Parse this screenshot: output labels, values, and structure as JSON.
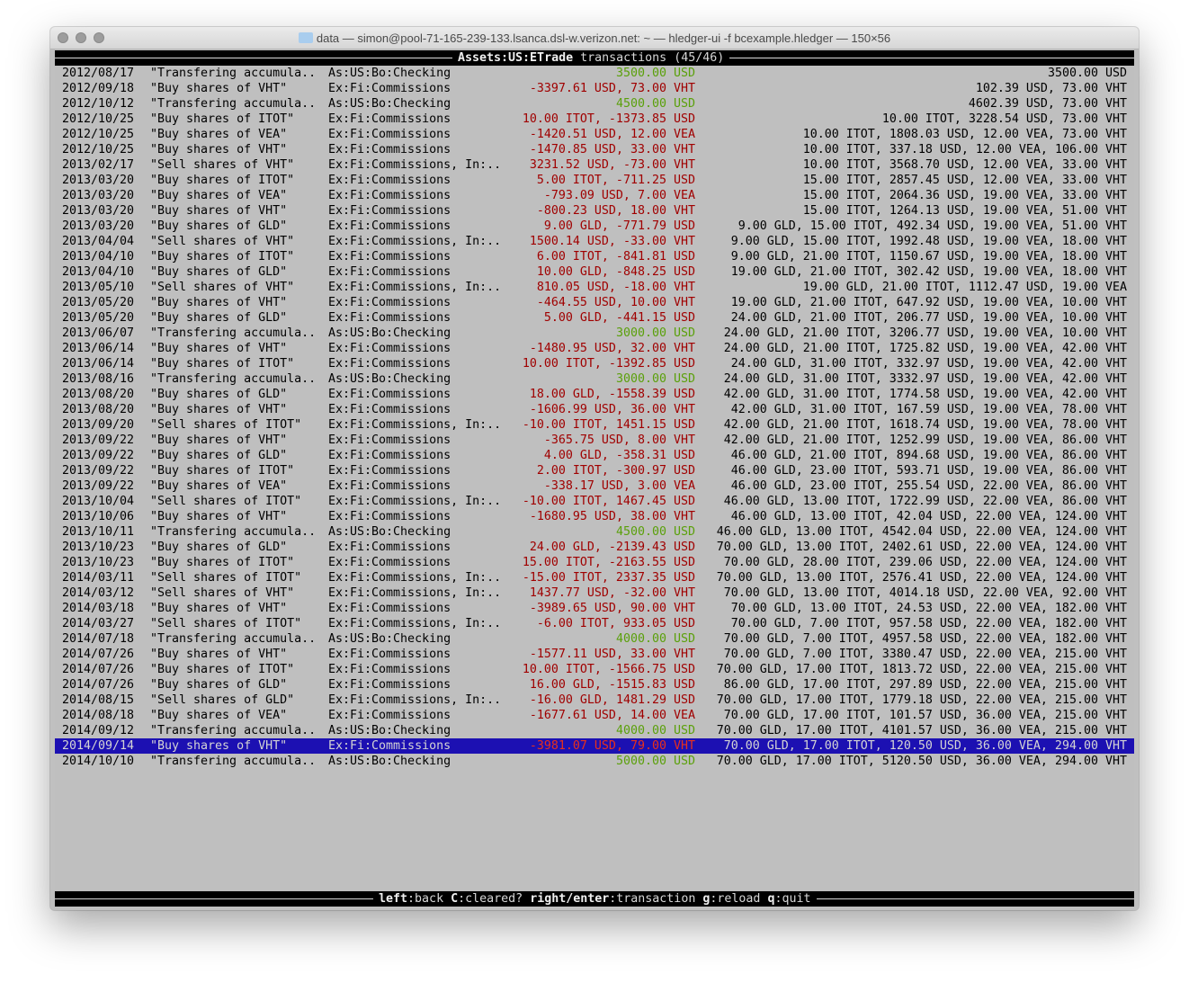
{
  "window": {
    "title": "data — simon@pool-71-165-239-133.lsanca.dsl-w.verizon.net: ~ — hledger-ui -f bcexample.hledger — 150×56"
  },
  "header": {
    "account": "Assets:US:ETrade",
    "label": "transactions",
    "count": "(45/46)"
  },
  "footer": {
    "keys": [
      {
        "key": "left",
        "action": "back"
      },
      {
        "key": "C",
        "action": "cleared?"
      },
      {
        "key": "right/enter",
        "action": "transaction"
      },
      {
        "key": "g",
        "action": "reload"
      },
      {
        "key": "q",
        "action": "quit"
      }
    ]
  },
  "colors": {
    "background": "#bfbfbf",
    "increase": "#5aa00a",
    "decrease": "#a00000",
    "selected": "#1c10b2"
  },
  "selected_index": 44,
  "rows": [
    [
      "2012/08/17",
      "\"Transfering accumula..",
      "As:US:Bo:Checking",
      "3500.00 USD",
      "3500.00 USD",
      "pos"
    ],
    [
      "2012/09/18",
      "\"Buy shares of VHT\"",
      "Ex:Fi:Commissions",
      "-3397.61 USD, 73.00 VHT",
      "102.39 USD, 73.00 VHT",
      "neg"
    ],
    [
      "2012/10/12",
      "\"Transfering accumula..",
      "As:US:Bo:Checking",
      "4500.00 USD",
      "4602.39 USD, 73.00 VHT",
      "pos"
    ],
    [
      "2012/10/25",
      "\"Buy shares of ITOT\"",
      "Ex:Fi:Commissions",
      "10.00 ITOT, -1373.85 USD",
      "10.00 ITOT, 3228.54 USD, 73.00 VHT",
      "neg"
    ],
    [
      "2012/10/25",
      "\"Buy shares of VEA\"",
      "Ex:Fi:Commissions",
      "-1420.51 USD, 12.00 VEA",
      "10.00 ITOT, 1808.03 USD, 12.00 VEA, 73.00 VHT",
      "neg"
    ],
    [
      "2012/10/25",
      "\"Buy shares of VHT\"",
      "Ex:Fi:Commissions",
      "-1470.85 USD, 33.00 VHT",
      "10.00 ITOT, 337.18 USD, 12.00 VEA, 106.00 VHT",
      "neg"
    ],
    [
      "2013/02/17",
      "\"Sell shares of VHT\"",
      "Ex:Fi:Commissions, In:..",
      "3231.52 USD, -73.00 VHT",
      "10.00 ITOT, 3568.70 USD, 12.00 VEA, 33.00 VHT",
      "neg"
    ],
    [
      "2013/03/20",
      "\"Buy shares of ITOT\"",
      "Ex:Fi:Commissions",
      "5.00 ITOT, -711.25 USD",
      "15.00 ITOT, 2857.45 USD, 12.00 VEA, 33.00 VHT",
      "neg"
    ],
    [
      "2013/03/20",
      "\"Buy shares of VEA\"",
      "Ex:Fi:Commissions",
      "-793.09 USD, 7.00 VEA",
      "15.00 ITOT, 2064.36 USD, 19.00 VEA, 33.00 VHT",
      "neg"
    ],
    [
      "2013/03/20",
      "\"Buy shares of VHT\"",
      "Ex:Fi:Commissions",
      "-800.23 USD, 18.00 VHT",
      "15.00 ITOT, 1264.13 USD, 19.00 VEA, 51.00 VHT",
      "neg"
    ],
    [
      "2013/03/20",
      "\"Buy shares of GLD\"",
      "Ex:Fi:Commissions",
      "9.00 GLD, -771.79 USD",
      "9.00 GLD, 15.00 ITOT, 492.34 USD, 19.00 VEA, 51.00 VHT",
      "neg"
    ],
    [
      "2013/04/04",
      "\"Sell shares of VHT\"",
      "Ex:Fi:Commissions, In:..",
      "1500.14 USD, -33.00 VHT",
      "9.00 GLD, 15.00 ITOT, 1992.48 USD, 19.00 VEA, 18.00 VHT",
      "neg"
    ],
    [
      "2013/04/10",
      "\"Buy shares of ITOT\"",
      "Ex:Fi:Commissions",
      "6.00 ITOT, -841.81 USD",
      "9.00 GLD, 21.00 ITOT, 1150.67 USD, 19.00 VEA, 18.00 VHT",
      "neg"
    ],
    [
      "2013/04/10",
      "\"Buy shares of GLD\"",
      "Ex:Fi:Commissions",
      "10.00 GLD, -848.25 USD",
      "19.00 GLD, 21.00 ITOT, 302.42 USD, 19.00 VEA, 18.00 VHT",
      "neg"
    ],
    [
      "2013/05/10",
      "\"Sell shares of VHT\"",
      "Ex:Fi:Commissions, In:..",
      "810.05 USD, -18.00 VHT",
      "19.00 GLD, 21.00 ITOT, 1112.47 USD, 19.00 VEA",
      "neg"
    ],
    [
      "2013/05/20",
      "\"Buy shares of VHT\"",
      "Ex:Fi:Commissions",
      "-464.55 USD, 10.00 VHT",
      "19.00 GLD, 21.00 ITOT, 647.92 USD, 19.00 VEA, 10.00 VHT",
      "neg"
    ],
    [
      "2013/05/20",
      "\"Buy shares of GLD\"",
      "Ex:Fi:Commissions",
      "5.00 GLD, -441.15 USD",
      "24.00 GLD, 21.00 ITOT, 206.77 USD, 19.00 VEA, 10.00 VHT",
      "neg"
    ],
    [
      "2013/06/07",
      "\"Transfering accumula..",
      "As:US:Bo:Checking",
      "3000.00 USD",
      "24.00 GLD, 21.00 ITOT, 3206.77 USD, 19.00 VEA, 10.00 VHT",
      "pos"
    ],
    [
      "2013/06/14",
      "\"Buy shares of VHT\"",
      "Ex:Fi:Commissions",
      "-1480.95 USD, 32.00 VHT",
      "24.00 GLD, 21.00 ITOT, 1725.82 USD, 19.00 VEA, 42.00 VHT",
      "neg"
    ],
    [
      "2013/06/14",
      "\"Buy shares of ITOT\"",
      "Ex:Fi:Commissions",
      "10.00 ITOT, -1392.85 USD",
      "24.00 GLD, 31.00 ITOT, 332.97 USD, 19.00 VEA, 42.00 VHT",
      "neg"
    ],
    [
      "2013/08/16",
      "\"Transfering accumula..",
      "As:US:Bo:Checking",
      "3000.00 USD",
      "24.00 GLD, 31.00 ITOT, 3332.97 USD, 19.00 VEA, 42.00 VHT",
      "pos"
    ],
    [
      "2013/08/20",
      "\"Buy shares of GLD\"",
      "Ex:Fi:Commissions",
      "18.00 GLD, -1558.39 USD",
      "42.00 GLD, 31.00 ITOT, 1774.58 USD, 19.00 VEA, 42.00 VHT",
      "neg"
    ],
    [
      "2013/08/20",
      "\"Buy shares of VHT\"",
      "Ex:Fi:Commissions",
      "-1606.99 USD, 36.00 VHT",
      "42.00 GLD, 31.00 ITOT, 167.59 USD, 19.00 VEA, 78.00 VHT",
      "neg"
    ],
    [
      "2013/09/20",
      "\"Sell shares of ITOT\"",
      "Ex:Fi:Commissions, In:..",
      "-10.00 ITOT, 1451.15 USD",
      "42.00 GLD, 21.00 ITOT, 1618.74 USD, 19.00 VEA, 78.00 VHT",
      "neg"
    ],
    [
      "2013/09/22",
      "\"Buy shares of VHT\"",
      "Ex:Fi:Commissions",
      "-365.75 USD, 8.00 VHT",
      "42.00 GLD, 21.00 ITOT, 1252.99 USD, 19.00 VEA, 86.00 VHT",
      "neg"
    ],
    [
      "2013/09/22",
      "\"Buy shares of GLD\"",
      "Ex:Fi:Commissions",
      "4.00 GLD, -358.31 USD",
      "46.00 GLD, 21.00 ITOT, 894.68 USD, 19.00 VEA, 86.00 VHT",
      "neg"
    ],
    [
      "2013/09/22",
      "\"Buy shares of ITOT\"",
      "Ex:Fi:Commissions",
      "2.00 ITOT, -300.97 USD",
      "46.00 GLD, 23.00 ITOT, 593.71 USD, 19.00 VEA, 86.00 VHT",
      "neg"
    ],
    [
      "2013/09/22",
      "\"Buy shares of VEA\"",
      "Ex:Fi:Commissions",
      "-338.17 USD, 3.00 VEA",
      "46.00 GLD, 23.00 ITOT, 255.54 USD, 22.00 VEA, 86.00 VHT",
      "neg"
    ],
    [
      "2013/10/04",
      "\"Sell shares of ITOT\"",
      "Ex:Fi:Commissions, In:..",
      "-10.00 ITOT, 1467.45 USD",
      "46.00 GLD, 13.00 ITOT, 1722.99 USD, 22.00 VEA, 86.00 VHT",
      "neg"
    ],
    [
      "2013/10/06",
      "\"Buy shares of VHT\"",
      "Ex:Fi:Commissions",
      "-1680.95 USD, 38.00 VHT",
      "46.00 GLD, 13.00 ITOT, 42.04 USD, 22.00 VEA, 124.00 VHT",
      "neg"
    ],
    [
      "2013/10/11",
      "\"Transfering accumula..",
      "As:US:Bo:Checking",
      "4500.00 USD",
      "46.00 GLD, 13.00 ITOT, 4542.04 USD, 22.00 VEA, 124.00 VHT",
      "pos"
    ],
    [
      "2013/10/23",
      "\"Buy shares of GLD\"",
      "Ex:Fi:Commissions",
      "24.00 GLD, -2139.43 USD",
      "70.00 GLD, 13.00 ITOT, 2402.61 USD, 22.00 VEA, 124.00 VHT",
      "neg"
    ],
    [
      "2013/10/23",
      "\"Buy shares of ITOT\"",
      "Ex:Fi:Commissions",
      "15.00 ITOT, -2163.55 USD",
      "70.00 GLD, 28.00 ITOT, 239.06 USD, 22.00 VEA, 124.00 VHT",
      "neg"
    ],
    [
      "2014/03/11",
      "\"Sell shares of ITOT\"",
      "Ex:Fi:Commissions, In:..",
      "-15.00 ITOT, 2337.35 USD",
      "70.00 GLD, 13.00 ITOT, 2576.41 USD, 22.00 VEA, 124.00 VHT",
      "neg"
    ],
    [
      "2014/03/12",
      "\"Sell shares of VHT\"",
      "Ex:Fi:Commissions, In:..",
      "1437.77 USD, -32.00 VHT",
      "70.00 GLD, 13.00 ITOT, 4014.18 USD, 22.00 VEA, 92.00 VHT",
      "neg"
    ],
    [
      "2014/03/18",
      "\"Buy shares of VHT\"",
      "Ex:Fi:Commissions",
      "-3989.65 USD, 90.00 VHT",
      "70.00 GLD, 13.00 ITOT, 24.53 USD, 22.00 VEA, 182.00 VHT",
      "neg"
    ],
    [
      "2014/03/27",
      "\"Sell shares of ITOT\"",
      "Ex:Fi:Commissions, In:..",
      "-6.00 ITOT, 933.05 USD",
      "70.00 GLD, 7.00 ITOT, 957.58 USD, 22.00 VEA, 182.00 VHT",
      "neg"
    ],
    [
      "2014/07/18",
      "\"Transfering accumula..",
      "As:US:Bo:Checking",
      "4000.00 USD",
      "70.00 GLD, 7.00 ITOT, 4957.58 USD, 22.00 VEA, 182.00 VHT",
      "pos"
    ],
    [
      "2014/07/26",
      "\"Buy shares of VHT\"",
      "Ex:Fi:Commissions",
      "-1577.11 USD, 33.00 VHT",
      "70.00 GLD, 7.00 ITOT, 3380.47 USD, 22.00 VEA, 215.00 VHT",
      "neg"
    ],
    [
      "2014/07/26",
      "\"Buy shares of ITOT\"",
      "Ex:Fi:Commissions",
      "10.00 ITOT, -1566.75 USD",
      "70.00 GLD, 17.00 ITOT, 1813.72 USD, 22.00 VEA, 215.00 VHT",
      "neg"
    ],
    [
      "2014/07/26",
      "\"Buy shares of GLD\"",
      "Ex:Fi:Commissions",
      "16.00 GLD, -1515.83 USD",
      "86.00 GLD, 17.00 ITOT, 297.89 USD, 22.00 VEA, 215.00 VHT",
      "neg"
    ],
    [
      "2014/08/15",
      "\"Sell shares of GLD\"",
      "Ex:Fi:Commissions, In:..",
      "-16.00 GLD, 1481.29 USD",
      "70.00 GLD, 17.00 ITOT, 1779.18 USD, 22.00 VEA, 215.00 VHT",
      "neg"
    ],
    [
      "2014/08/18",
      "\"Buy shares of VEA\"",
      "Ex:Fi:Commissions",
      "-1677.61 USD, 14.00 VEA",
      "70.00 GLD, 17.00 ITOT, 101.57 USD, 36.00 VEA, 215.00 VHT",
      "neg"
    ],
    [
      "2014/09/12",
      "\"Transfering accumula..",
      "As:US:Bo:Checking",
      "4000.00 USD",
      "70.00 GLD, 17.00 ITOT, 4101.57 USD, 36.00 VEA, 215.00 VHT",
      "pos"
    ],
    [
      "2014/09/14",
      "\"Buy shares of VHT\"",
      "Ex:Fi:Commissions",
      "-3981.07 USD, 79.00 VHT",
      "70.00 GLD, 17.00 ITOT, 120.50 USD, 36.00 VEA, 294.00 VHT",
      "neg"
    ],
    [
      "2014/10/10",
      "\"Transfering accumula..",
      "As:US:Bo:Checking",
      "5000.00 USD",
      "70.00 GLD, 17.00 ITOT, 5120.50 USD, 36.00 VEA, 294.00 VHT",
      "pos"
    ]
  ]
}
